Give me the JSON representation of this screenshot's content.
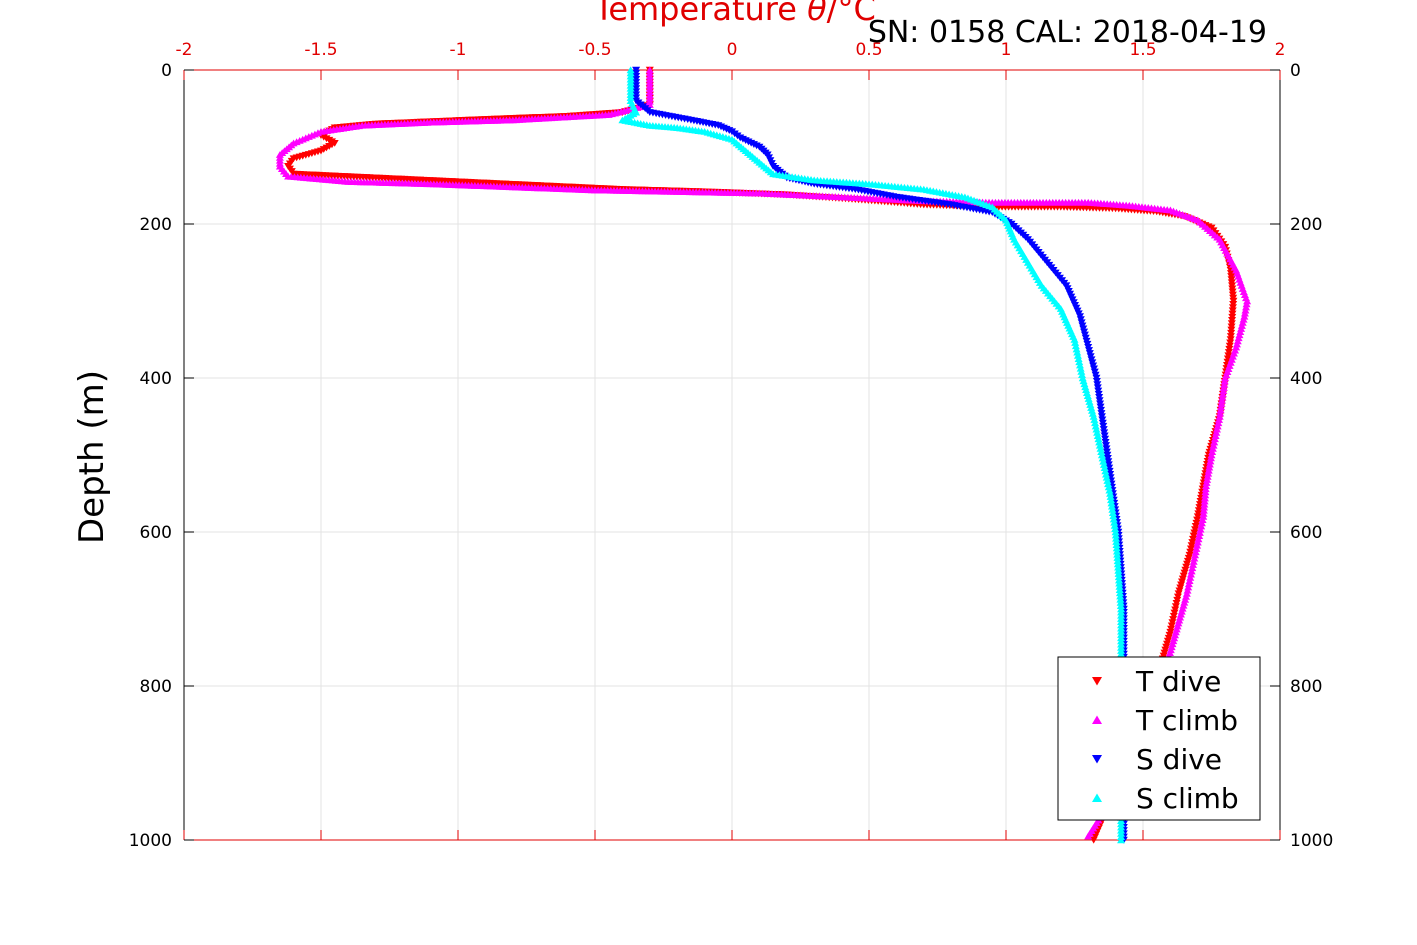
{
  "chart_data": {
    "type": "scatter",
    "title": "Temperature θ/°C",
    "title_parts": [
      "Temperature ",
      "θ",
      "/°C"
    ],
    "annotation": "SN: 0158  CAL: 2018-04-19",
    "xlabel": "Temperature θ/°C",
    "ylabel": "Depth (m)",
    "xlim": [
      -2,
      2
    ],
    "ylim": [
      0,
      1000
    ],
    "y_reversed": true,
    "x_axis_position": "top",
    "xticks": [
      -2,
      -1.5,
      -1,
      -0.5,
      0,
      0.5,
      1,
      1.5,
      2
    ],
    "xtick_labels": [
      "-2",
      "-1.5",
      "-1",
      "-0.5",
      "0",
      "0.5",
      "1",
      "1.5",
      "2"
    ],
    "yticks": [
      0,
      200,
      400,
      600,
      800,
      1000
    ],
    "ytick_labels": [
      "0",
      "200",
      "400",
      "600",
      "800",
      "1000"
    ],
    "grid": true,
    "legend_position": "bottom-right",
    "series": [
      {
        "name": "T dive",
        "color": "#ff0000",
        "marker": "triangle-down",
        "points": [
          [
            -0.3,
            0
          ],
          [
            -0.3,
            20
          ],
          [
            -0.3,
            45
          ],
          [
            -0.4,
            55
          ],
          [
            -0.6,
            60
          ],
          [
            -0.9,
            64
          ],
          [
            -1.1,
            67
          ],
          [
            -1.3,
            70
          ],
          [
            -1.45,
            75
          ],
          [
            -1.5,
            85
          ],
          [
            -1.45,
            95
          ],
          [
            -1.5,
            105
          ],
          [
            -1.6,
            115
          ],
          [
            -1.62,
            125
          ],
          [
            -1.6,
            135
          ],
          [
            -1.3,
            140
          ],
          [
            -1.0,
            145
          ],
          [
            -0.7,
            150
          ],
          [
            -0.4,
            155
          ],
          [
            -0.1,
            158
          ],
          [
            0.2,
            162
          ],
          [
            0.45,
            168
          ],
          [
            0.7,
            175
          ],
          [
            0.95,
            178
          ],
          [
            1.2,
            178
          ],
          [
            1.4,
            180
          ],
          [
            1.55,
            184
          ],
          [
            1.65,
            190
          ],
          [
            1.75,
            205
          ],
          [
            1.8,
            230
          ],
          [
            1.82,
            260
          ],
          [
            1.83,
            300
          ],
          [
            1.82,
            350
          ],
          [
            1.8,
            400
          ],
          [
            1.78,
            450
          ],
          [
            1.74,
            500
          ],
          [
            1.72,
            540
          ],
          [
            1.7,
            580
          ],
          [
            1.67,
            630
          ],
          [
            1.63,
            680
          ],
          [
            1.6,
            730
          ],
          [
            1.56,
            780
          ],
          [
            1.5,
            840
          ],
          [
            1.44,
            900
          ],
          [
            1.38,
            950
          ],
          [
            1.32,
            1000
          ]
        ]
      },
      {
        "name": "T climb",
        "color": "#ff00ff",
        "marker": "triangle-up",
        "points": [
          [
            -0.3,
            0
          ],
          [
            -0.3,
            20
          ],
          [
            -0.3,
            45
          ],
          [
            -0.45,
            58
          ],
          [
            -0.8,
            65
          ],
          [
            -1.1,
            68
          ],
          [
            -1.35,
            72
          ],
          [
            -1.5,
            80
          ],
          [
            -1.6,
            95
          ],
          [
            -1.65,
            110
          ],
          [
            -1.65,
            125
          ],
          [
            -1.62,
            138
          ],
          [
            -1.4,
            145
          ],
          [
            -1.1,
            148
          ],
          [
            -0.8,
            152
          ],
          [
            -0.5,
            156
          ],
          [
            -0.2,
            158
          ],
          [
            0.1,
            160
          ],
          [
            0.4,
            165
          ],
          [
            0.7,
            170
          ],
          [
            0.95,
            172
          ],
          [
            1.1,
            172
          ],
          [
            1.3,
            172
          ],
          [
            1.45,
            176
          ],
          [
            1.6,
            182
          ],
          [
            1.7,
            195
          ],
          [
            1.78,
            220
          ],
          [
            1.84,
            260
          ],
          [
            1.88,
            300
          ],
          [
            1.87,
            320
          ],
          [
            1.84,
            360
          ],
          [
            1.8,
            400
          ],
          [
            1.78,
            450
          ],
          [
            1.75,
            500
          ],
          [
            1.73,
            540
          ],
          [
            1.72,
            580
          ],
          [
            1.69,
            630
          ],
          [
            1.66,
            680
          ],
          [
            1.62,
            730
          ],
          [
            1.58,
            780
          ],
          [
            1.52,
            840
          ],
          [
            1.45,
            900
          ],
          [
            1.38,
            950
          ],
          [
            1.3,
            995
          ]
        ]
      },
      {
        "name": "S dive",
        "color": "#0000ff",
        "marker": "triangle-down",
        "points": [
          [
            -0.35,
            0
          ],
          [
            -0.35,
            20
          ],
          [
            -0.35,
            40
          ],
          [
            -0.3,
            55
          ],
          [
            -0.15,
            65
          ],
          [
            -0.05,
            72
          ],
          [
            0,
            80
          ],
          [
            0.03,
            88
          ],
          [
            0.1,
            100
          ],
          [
            0.13,
            110
          ],
          [
            0.15,
            125
          ],
          [
            0.2,
            140
          ],
          [
            0.3,
            148
          ],
          [
            0.45,
            155
          ],
          [
            0.6,
            165
          ],
          [
            0.8,
            175
          ],
          [
            0.95,
            185
          ],
          [
            1.02,
            200
          ],
          [
            1.08,
            220
          ],
          [
            1.15,
            250
          ],
          [
            1.22,
            280
          ],
          [
            1.27,
            320
          ],
          [
            1.3,
            360
          ],
          [
            1.33,
            400
          ],
          [
            1.35,
            450
          ],
          [
            1.37,
            500
          ],
          [
            1.39,
            550
          ],
          [
            1.41,
            600
          ],
          [
            1.42,
            650
          ],
          [
            1.43,
            700
          ],
          [
            1.43,
            750
          ],
          [
            1.43,
            800
          ],
          [
            1.43,
            850
          ],
          [
            1.43,
            900
          ],
          [
            1.43,
            950
          ],
          [
            1.43,
            1000
          ]
        ]
      },
      {
        "name": "S climb",
        "color": "#00ffff",
        "marker": "triangle-up",
        "points": [
          [
            -0.37,
            0
          ],
          [
            -0.37,
            20
          ],
          [
            -0.37,
            40
          ],
          [
            -0.35,
            55
          ],
          [
            -0.4,
            65
          ],
          [
            -0.3,
            72
          ],
          [
            -0.2,
            75
          ],
          [
            -0.1,
            80
          ],
          [
            0,
            90
          ],
          [
            0.05,
            105
          ],
          [
            0.1,
            120
          ],
          [
            0.15,
            135
          ],
          [
            0.3,
            143
          ],
          [
            0.5,
            148
          ],
          [
            0.7,
            155
          ],
          [
            0.85,
            165
          ],
          [
            0.95,
            178
          ],
          [
            1.0,
            195
          ],
          [
            1.03,
            220
          ],
          [
            1.08,
            250
          ],
          [
            1.13,
            280
          ],
          [
            1.2,
            310
          ],
          [
            1.25,
            350
          ],
          [
            1.28,
            400
          ],
          [
            1.32,
            450
          ],
          [
            1.35,
            500
          ],
          [
            1.38,
            550
          ],
          [
            1.4,
            600
          ],
          [
            1.41,
            650
          ],
          [
            1.42,
            700
          ],
          [
            1.42,
            750
          ],
          [
            1.42,
            800
          ],
          [
            1.42,
            850
          ],
          [
            1.42,
            900
          ],
          [
            1.42,
            950
          ],
          [
            1.42,
            1000
          ]
        ]
      }
    ]
  }
}
